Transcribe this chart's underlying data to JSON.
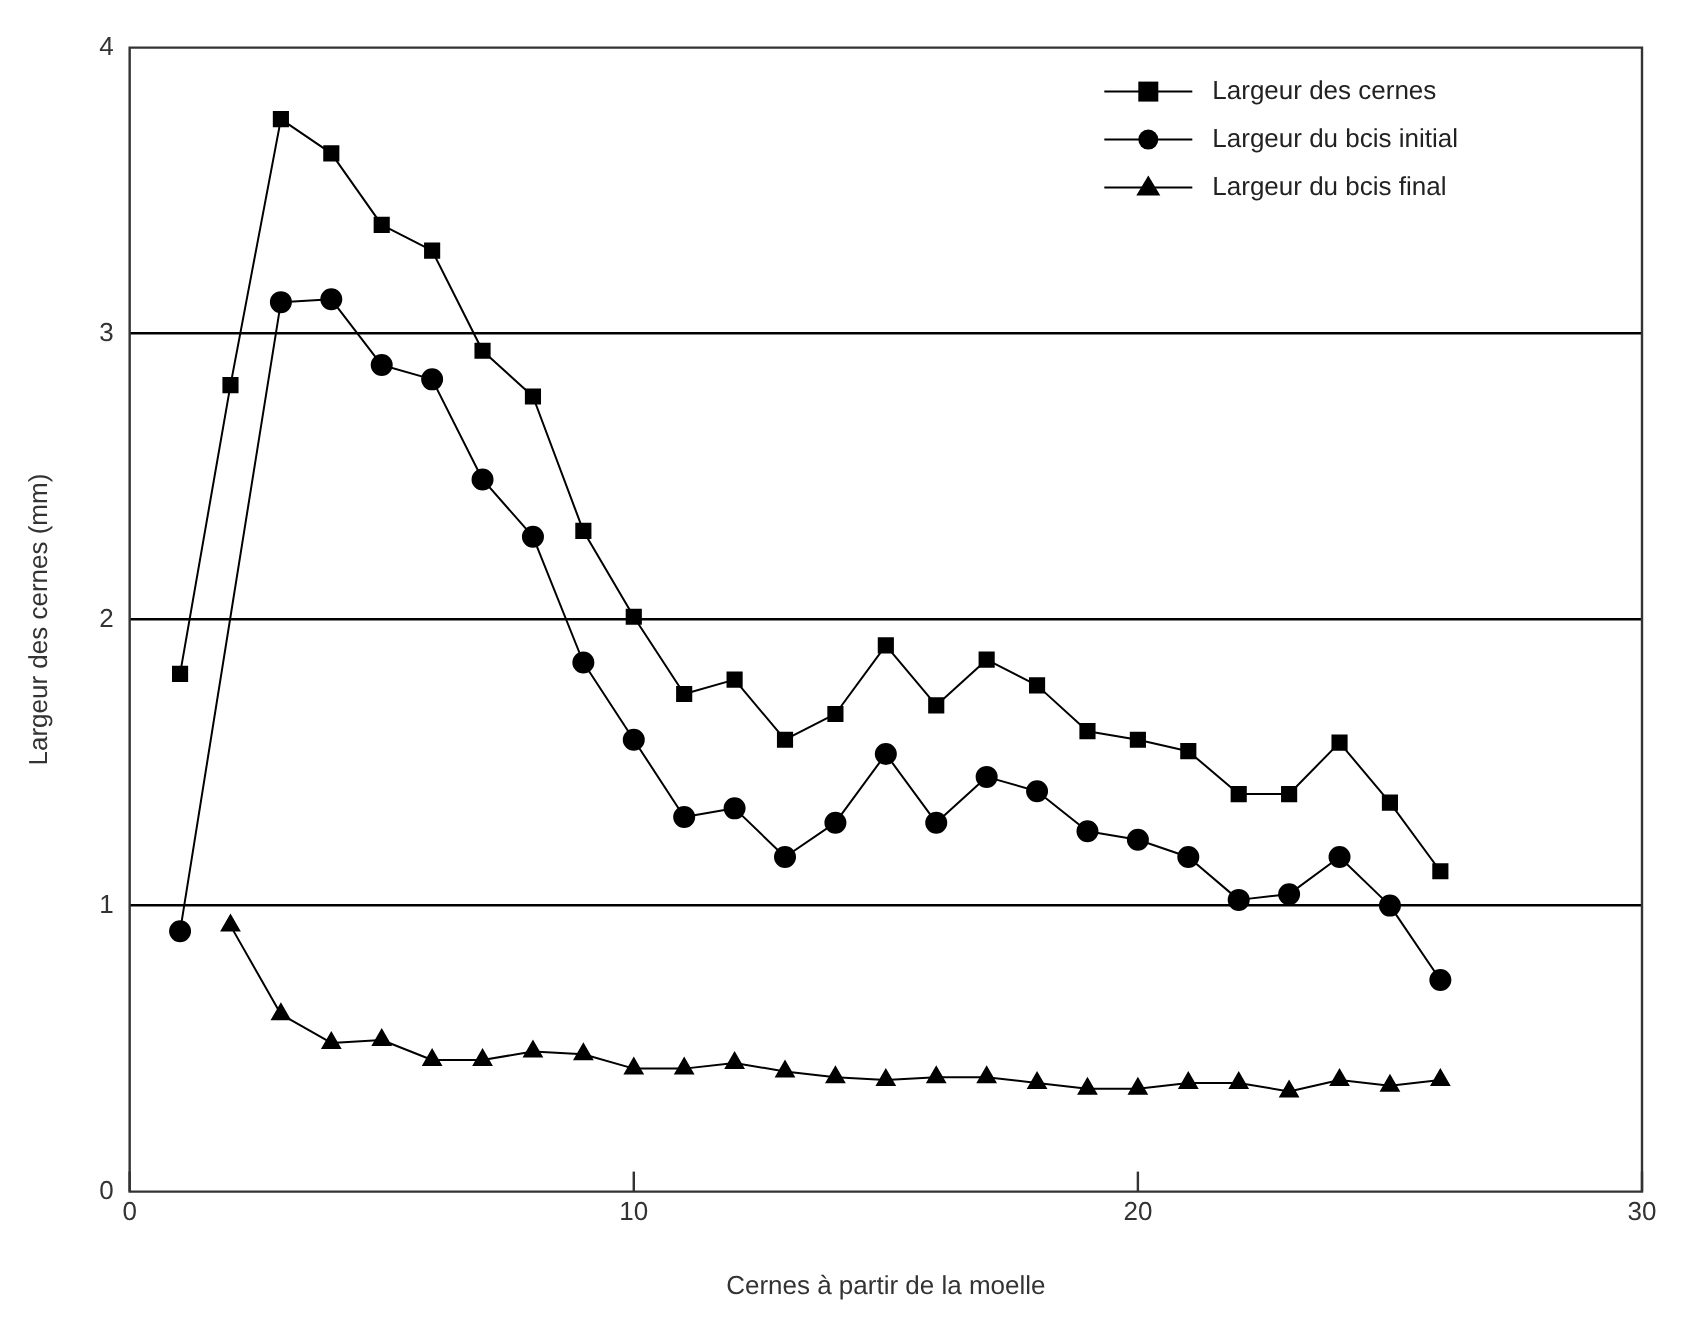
{
  "chart_data": {
    "type": "line",
    "xlabel": "Cernes à partir de la moelle",
    "ylabel": "Largeur des cernes (mm)",
    "xlim": [
      0,
      30
    ],
    "xticks": [
      0,
      10,
      20,
      30
    ],
    "ylim": [
      0,
      4
    ],
    "yticks": [
      0,
      1,
      2,
      3,
      4
    ],
    "grid": "y",
    "legend": "top right",
    "series": [
      {
        "name": "Largeur des cernes",
        "color": "#000000",
        "marker": "square",
        "x": [
          1,
          2,
          3,
          4,
          5,
          6,
          7,
          8,
          9,
          10,
          11,
          12,
          13,
          14,
          15,
          16,
          17,
          18,
          19,
          20,
          21,
          22,
          23,
          24,
          25,
          26
        ],
        "values": [
          1.81,
          2.82,
          3.75,
          3.63,
          3.38,
          3.29,
          2.94,
          2.78,
          2.31,
          2.01,
          1.74,
          1.79,
          1.58,
          1.67,
          1.91,
          1.7,
          1.86,
          1.77,
          1.61,
          1.58,
          1.54,
          1.39,
          1.39,
          1.57,
          1.36,
          1.12
        ]
      },
      {
        "name": "Largeur du bcis initial",
        "color": "#000000",
        "marker": "circle",
        "x": [
          1,
          3,
          4,
          5,
          6,
          7,
          8,
          9,
          10,
          11,
          12,
          13,
          14,
          15,
          16,
          17,
          18,
          19,
          20,
          21,
          22,
          23,
          24,
          25,
          26
        ],
        "values": [
          0.91,
          3.11,
          3.12,
          2.89,
          2.84,
          2.49,
          2.29,
          1.85,
          1.58,
          1.31,
          1.34,
          1.17,
          1.29,
          1.53,
          1.29,
          1.45,
          1.4,
          1.26,
          1.23,
          1.17,
          1.02,
          1.04,
          1.17,
          1.0,
          0.74
        ]
      },
      {
        "name": "Largeur du bcis final",
        "color": "#000000",
        "marker": "triangle",
        "x": [
          2,
          3,
          4,
          5,
          6,
          7,
          8,
          9,
          10,
          11,
          12,
          13,
          14,
          15,
          16,
          17,
          18,
          19,
          20,
          21,
          22,
          23,
          24,
          25,
          26
        ],
        "values": [
          0.93,
          0.62,
          0.52,
          0.53,
          0.46,
          0.46,
          0.49,
          0.48,
          0.43,
          0.43,
          0.45,
          0.42,
          0.4,
          0.39,
          0.4,
          0.4,
          0.38,
          0.36,
          0.36,
          0.38,
          0.38,
          0.35,
          0.39,
          0.37,
          0.39
        ]
      }
    ]
  }
}
